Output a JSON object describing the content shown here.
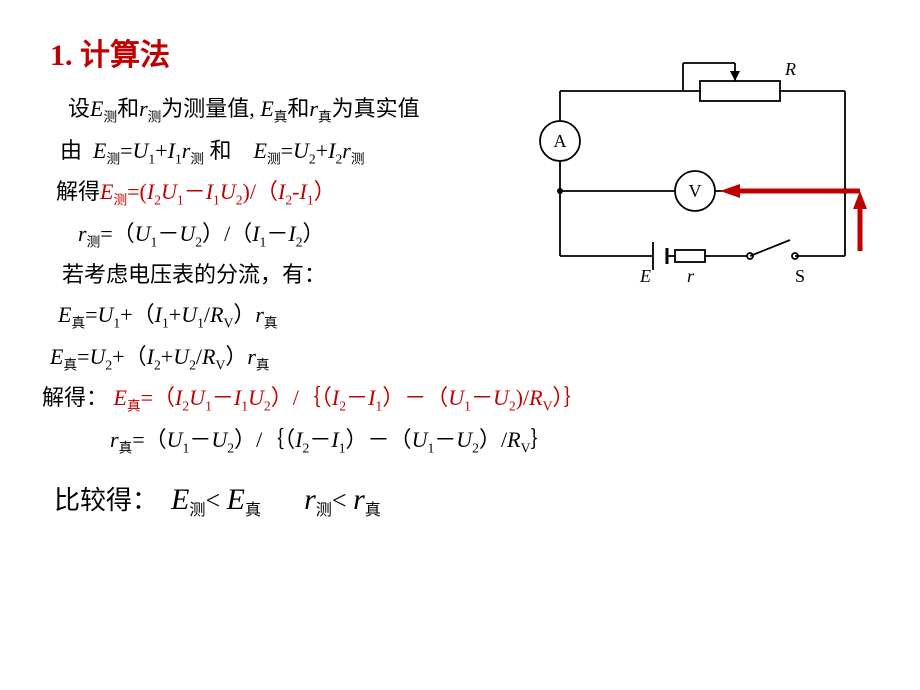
{
  "title": "1. 计算法",
  "premise_pre": "设",
  "premise_mid": "为测量值, ",
  "premise_post": "为真实值",
  "word_and_cn": "和",
  "E": "E",
  "r": "r",
  "sub_ce": "测",
  "sub_zhen": "真",
  "by_lead": "由",
  "U": "U",
  "I": "I",
  "R": "R",
  "s1": "1",
  "s2": "2",
  "sV": "V",
  "eq": "=",
  "plus": "+",
  "minus": "－",
  "slash": "/",
  "lp": "（",
  "rp": "）",
  "lp_ascii": "(",
  "rp_ascii": ")",
  "lbrace": "｛",
  "rbrace": "｝",
  "solve_lead": "解得",
  "solve_colon": "解得：",
  "consider_line": "若考虑电压表的分流，有：",
  "compare_lead": "比较得：",
  "lt": "< ",
  "word_and_en": " 和",
  "circuit": {
    "R_label": "R",
    "A_label": "A",
    "V_label": "V",
    "E_label": "E",
    "r_label": "r",
    "S_label": "S",
    "stroke": "#000000",
    "highlight": "#c00000",
    "hl_width": 5,
    "wire_width": 1.8
  }
}
